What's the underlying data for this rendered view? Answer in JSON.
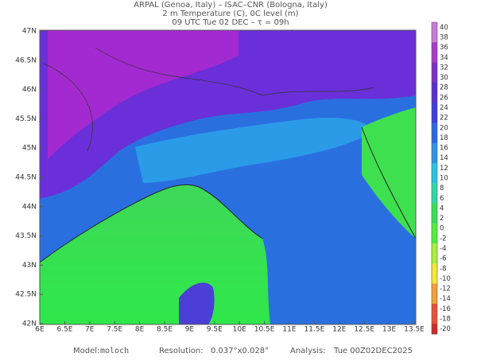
{
  "header": {
    "lines": [
      "ARPAL (Genoa, Italy)  –  ISAC–CNR (Bologna, Italy)",
      "2 m Temperature (C), 0C level (m)",
      "09 UTC Tue 02 DEC  –  τ = 09h"
    ]
  },
  "map": {
    "lat_labels": [
      "47N",
      "46.5N",
      "46N",
      "45.5N",
      "45N",
      "44.5N",
      "44N",
      "43.5N",
      "43N",
      "42.5N",
      "42N"
    ],
    "lon_labels": [
      "6E",
      "6.5E",
      "7E",
      "7.5E",
      "8E",
      "8.5E",
      "9E",
      "9.5E",
      "10E",
      "10.5E",
      "11E",
      "11.5E",
      "12E",
      "12.5E",
      "13E",
      "13.5E"
    ]
  },
  "colorbar": {
    "labels": [
      40,
      38,
      36,
      34,
      32,
      30,
      28,
      26,
      24,
      22,
      20,
      18,
      16,
      14,
      12,
      10,
      8,
      6,
      4,
      2,
      0,
      -2,
      -4,
      -6,
      -8,
      -10,
      -12,
      -14,
      -16,
      -18,
      -20
    ]
  },
  "footer": {
    "model_label": "Model:",
    "model": "moloch",
    "resolution_label": "Resolution:",
    "resolution": "0.037°x0.028°",
    "analysis_label": "Analysis:",
    "analysis": "Tue 00Z02DEC2025"
  }
}
